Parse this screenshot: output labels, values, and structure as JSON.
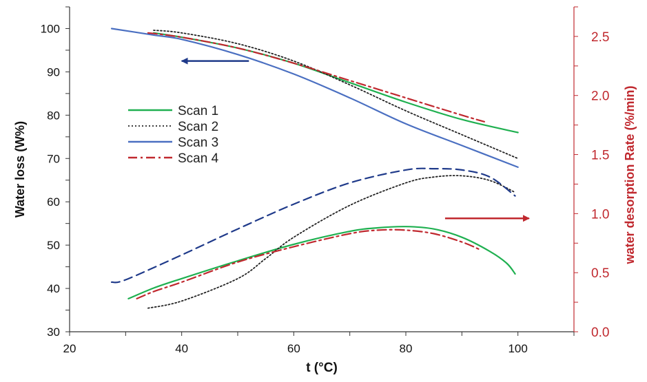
{
  "chart_data": {
    "type": "line",
    "xlabel": "t (°C)",
    "ylabel_left": "Water loss (W%)",
    "ylabel_right": "water desorption Rate (%/min)",
    "xlim": [
      20,
      110
    ],
    "ylim_left": [
      30,
      105
    ],
    "ylim_right": [
      0.0,
      2.75
    ],
    "x_ticks": [
      "20",
      "40",
      "60",
      "80",
      "100"
    ],
    "y_left_ticks": [
      "30",
      "40",
      "50",
      "60",
      "70",
      "80",
      "90",
      "100"
    ],
    "y_right_ticks": [
      "0.0",
      "0.5",
      "1.0",
      "1.5",
      "2.0",
      "2.5"
    ],
    "grid": false,
    "colors": {
      "scan1": "#1fb050",
      "scan2": "#222222",
      "scan3": "#4a6fc1",
      "scan4": "#c0282e",
      "scan3_rate": "#1f3a8a",
      "right_axis": "#c0282e",
      "left_arrow": "#1f3a8a",
      "right_arrow": "#c0282e"
    },
    "legend": {
      "placement": "center-left",
      "entries": [
        {
          "key": "scan1",
          "label": "Scan  1",
          "dash": "solid"
        },
        {
          "key": "scan2",
          "label": "Scan  2",
          "dash": "dotted"
        },
        {
          "key": "scan3",
          "label": "Scan 3",
          "dash": "solid"
        },
        {
          "key": "scan4",
          "label": "Scan  4",
          "dash": "dashdot"
        }
      ]
    },
    "annotations": [
      {
        "type": "arrow",
        "direction": "left",
        "points_to": "left axis (water loss)",
        "color_key": "left_arrow",
        "from": [
          52,
          92.5
        ],
        "to": [
          40,
          92.5
        ],
        "axis": "left"
      },
      {
        "type": "arrow",
        "direction": "right",
        "points_to": "right axis (desorption rate)",
        "color_key": "right_arrow",
        "from": [
          87,
          0.96
        ],
        "to": [
          102,
          0.96
        ],
        "axis": "right"
      }
    ],
    "series": [
      {
        "name": "Scan 1 water loss",
        "key": "scan1",
        "axis": "left",
        "dash": "solid",
        "x": [
          35,
          40,
          50,
          60,
          70,
          80,
          90,
          100
        ],
        "y": [
          99.0,
          98.0,
          95.5,
          92.0,
          87.5,
          83.0,
          79.0,
          76.0
        ]
      },
      {
        "name": "Scan 2 water loss",
        "key": "scan2",
        "axis": "left",
        "dash": "dotted",
        "x": [
          35,
          40,
          50,
          60,
          70,
          80,
          90,
          100
        ],
        "y": [
          99.6,
          99.0,
          96.5,
          92.5,
          87.0,
          81.0,
          75.5,
          70.0
        ]
      },
      {
        "name": "Scan 3 water loss",
        "key": "scan3",
        "axis": "left",
        "dash": "solid",
        "x": [
          27.5,
          35,
          40,
          50,
          60,
          70,
          80,
          90,
          100
        ],
        "y": [
          100.0,
          98.5,
          97.5,
          94.0,
          89.5,
          84.0,
          78.0,
          73.0,
          68.0
        ]
      },
      {
        "name": "Scan 4 water loss",
        "key": "scan4",
        "axis": "left",
        "dash": "dashdot",
        "x": [
          34,
          40,
          50,
          60,
          70,
          80,
          90,
          94
        ],
        "y": [
          99.0,
          98.0,
          95.5,
          92.0,
          88.0,
          84.0,
          80.0,
          78.5
        ]
      },
      {
        "name": "Scan 1 desorption rate",
        "key": "scan1",
        "axis": "right",
        "dash": "solid",
        "x": [
          30.5,
          35,
          40,
          50,
          60,
          70,
          75,
          80,
          85,
          90,
          95,
          98,
          99.5
        ],
        "y": [
          0.28,
          0.37,
          0.45,
          0.6,
          0.74,
          0.85,
          0.88,
          0.89,
          0.87,
          0.8,
          0.68,
          0.58,
          0.49
        ]
      },
      {
        "name": "Scan 2 desorption rate",
        "key": "scan2",
        "axis": "right",
        "dash": "dotted",
        "x": [
          34,
          40,
          50,
          55,
          60,
          70,
          80,
          85,
          90,
          95,
          99.5
        ],
        "y": [
          0.2,
          0.26,
          0.45,
          0.62,
          0.8,
          1.07,
          1.26,
          1.31,
          1.32,
          1.28,
          1.18
        ]
      },
      {
        "name": "Scan 3 desorption rate",
        "key": "scan3_rate",
        "axis": "right",
        "dash": "dashed",
        "x": [
          27.5,
          30,
          40,
          50,
          60,
          70,
          80,
          85,
          90,
          95,
          99.5
        ],
        "y": [
          0.42,
          0.44,
          0.65,
          0.87,
          1.08,
          1.26,
          1.37,
          1.38,
          1.37,
          1.31,
          1.15
        ]
      },
      {
        "name": "Scan 4 desorption rate",
        "key": "scan4",
        "axis": "right",
        "dash": "dashdot",
        "x": [
          32,
          35,
          40,
          50,
          60,
          70,
          75,
          80,
          85,
          90,
          93
        ],
        "y": [
          0.28,
          0.34,
          0.42,
          0.59,
          0.72,
          0.83,
          0.86,
          0.86,
          0.83,
          0.76,
          0.7
        ]
      }
    ]
  }
}
